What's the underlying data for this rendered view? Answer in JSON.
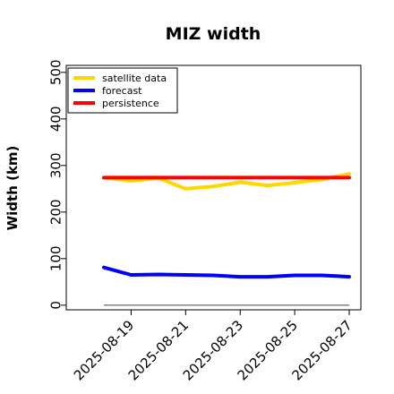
{
  "chart_data": {
    "type": "line",
    "title": "MIZ width",
    "xlabel": "",
    "ylabel": "Width (km)",
    "ylim": [
      -10,
      515
    ],
    "y_ticks": [
      0,
      100,
      200,
      300,
      400,
      500
    ],
    "y_tick_labels": [
      "0",
      "100",
      "200",
      "300",
      "400",
      "500"
    ],
    "x": [
      "2025-08-18",
      "2025-08-19",
      "2025-08-20",
      "2025-08-21",
      "2025-08-22",
      "2025-08-23",
      "2025-08-24",
      "2025-08-25",
      "2025-08-26",
      "2025-08-27"
    ],
    "x_ticks": [
      "2025-08-19",
      "2025-08-21",
      "2025-08-23",
      "2025-08-25",
      "2025-08-27"
    ],
    "x_tick_labels": [
      "2025-08-19",
      "2025-08-21",
      "2025-08-23",
      "2025-08-25",
      "2025-08-27"
    ],
    "highlighted_tick": "2025-08-19",
    "highlight_color": "#008000",
    "grid": false,
    "legend_position": "top-left",
    "series": [
      {
        "name": "satellite data",
        "color": "#FFD700",
        "values": [
          274,
          267,
          273,
          250,
          255,
          264,
          257,
          263,
          270,
          282
        ]
      },
      {
        "name": "forecast",
        "color": "#0000FF",
        "values": [
          81,
          65,
          66,
          65,
          64,
          61,
          61,
          64,
          64,
          61
        ]
      },
      {
        "name": "persistence",
        "color": "#FF0000",
        "values": [
          274,
          274,
          274,
          274,
          274,
          274,
          274,
          274,
          274,
          274
        ]
      }
    ],
    "reference_line": {
      "value": 0,
      "color": "#808080"
    }
  }
}
